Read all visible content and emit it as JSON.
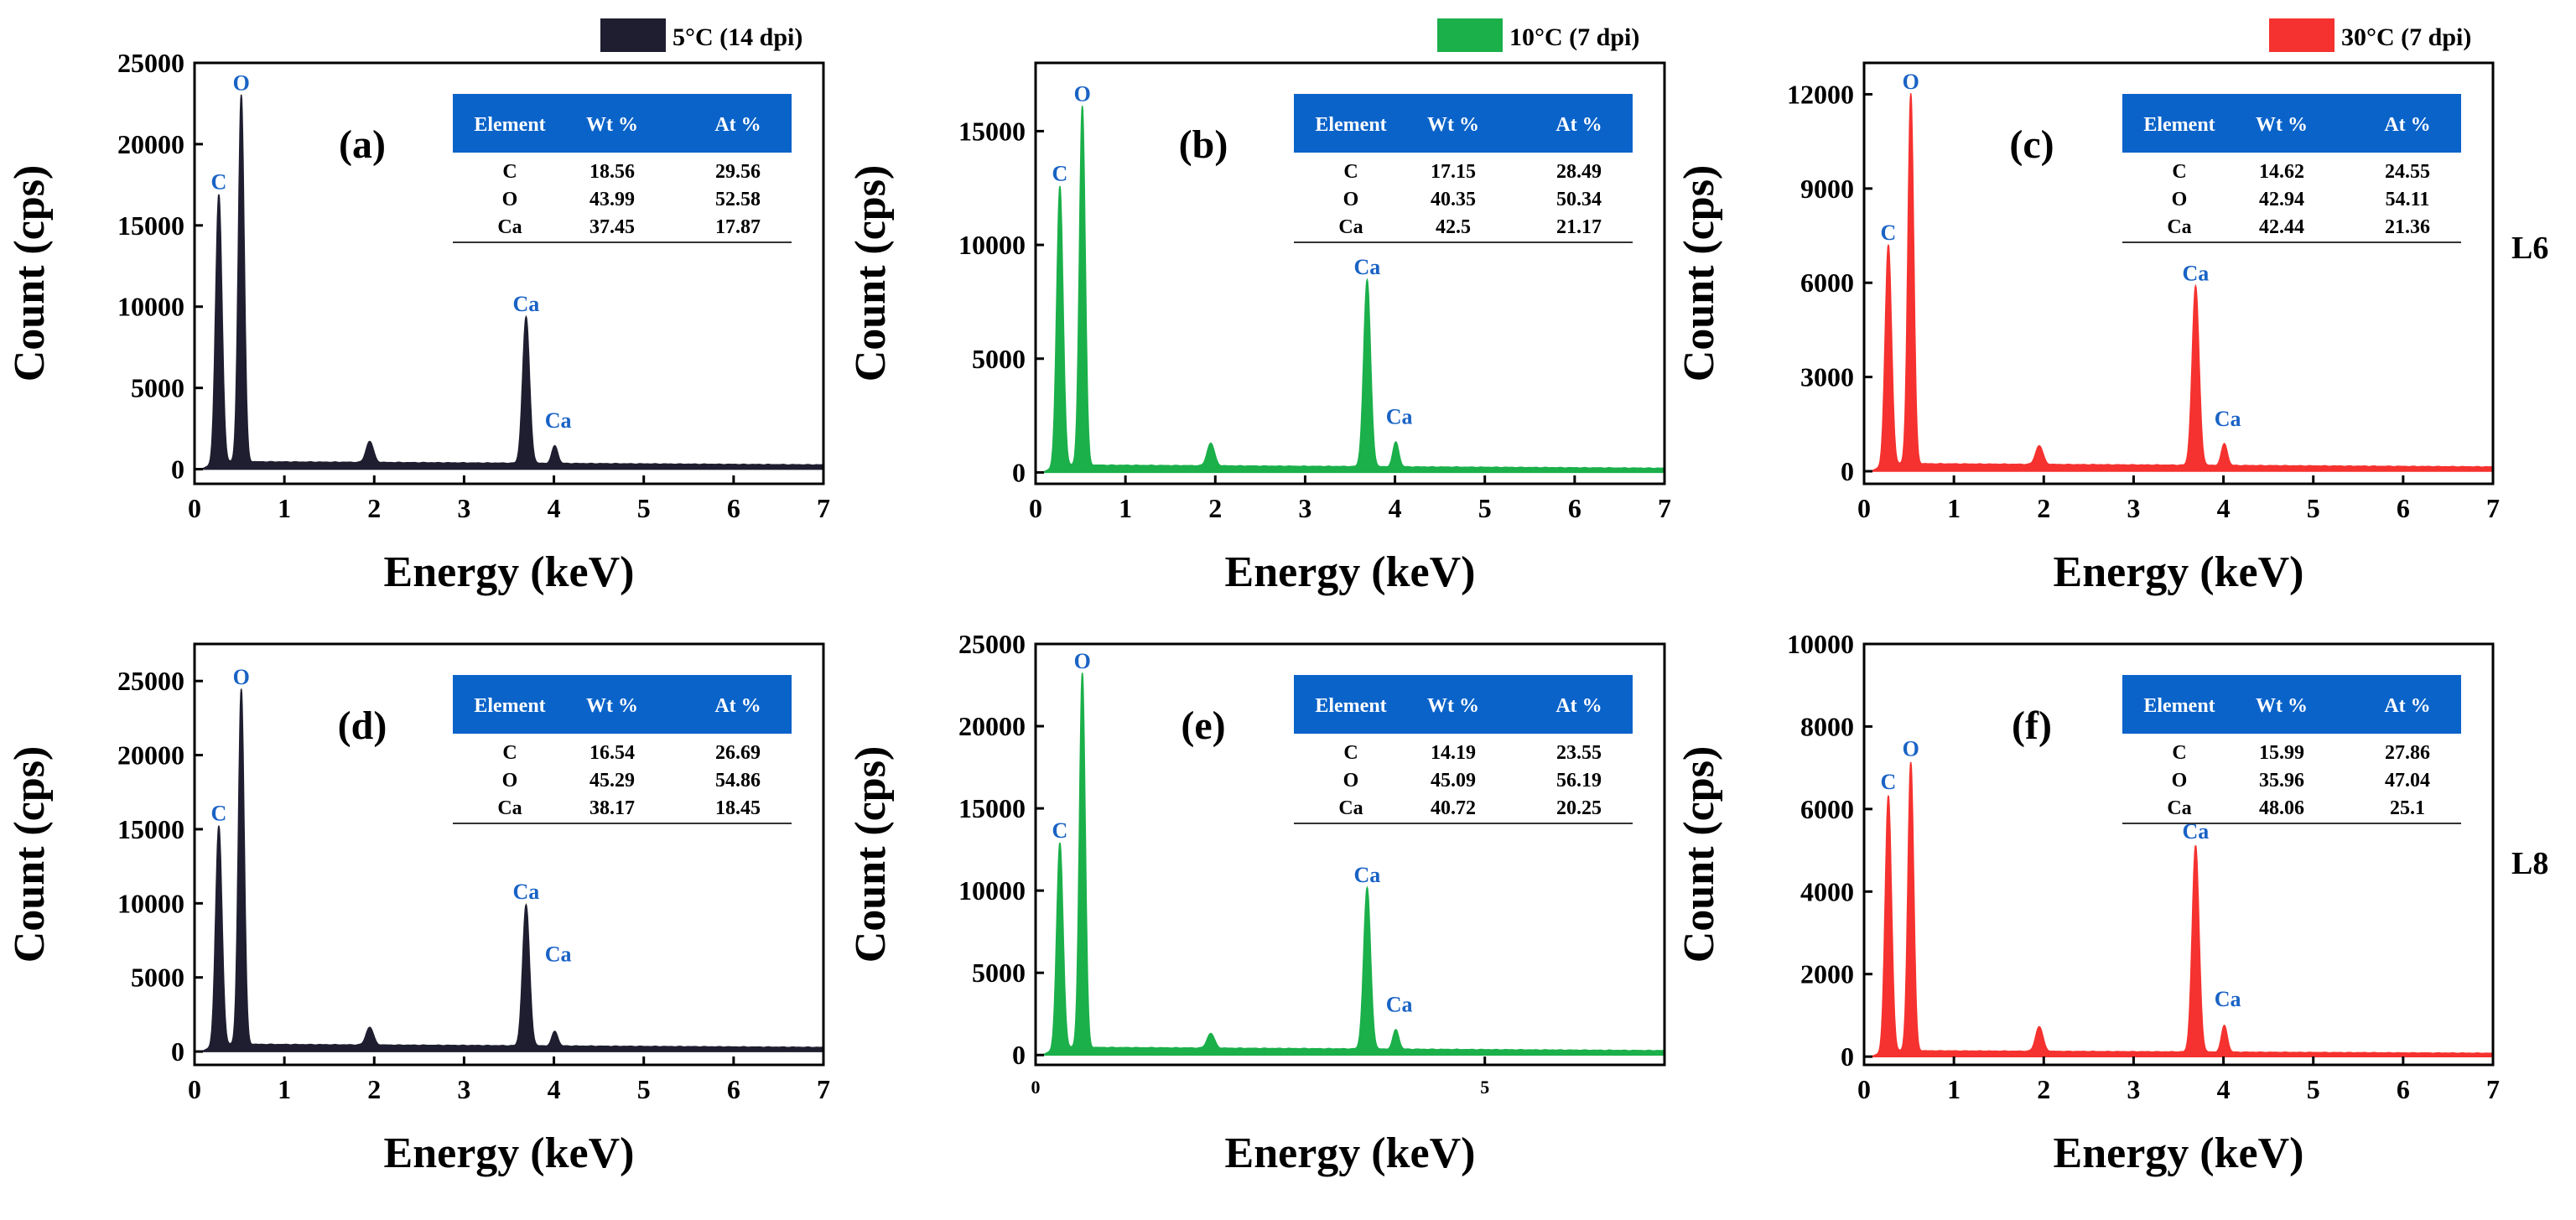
{
  "legend": [
    {
      "label": "5°C (14 dpi)",
      "color": "#1e1e30"
    },
    {
      "label": "10°C (7 dpi)",
      "color": "#1bb04a"
    },
    {
      "label": "30°C (7 dpi)",
      "color": "#f5322f"
    }
  ],
  "row_labels": [
    "L6",
    "L8"
  ],
  "table_header_color": "#0a63c9",
  "peak_label_color": "#1a63c5",
  "chart_data": [
    {
      "type": "line",
      "fill": "area",
      "panel": "(a)",
      "color": "#1e1e30",
      "xlabel": "Energy (keV)",
      "ylabel": "Count (cps)",
      "xlim": [
        0,
        7
      ],
      "ylim": [
        -900,
        25000
      ],
      "xticks": [
        "0",
        "1",
        "2",
        "3",
        "4",
        "5",
        "6",
        "7"
      ],
      "yticks": [
        0,
        5000,
        10000,
        15000,
        20000,
        25000
      ],
      "peaks": [
        {
          "x": 0.27,
          "y": 16500,
          "label": "C"
        },
        {
          "x": 0.52,
          "y": 22600,
          "label": "O"
        },
        {
          "x": 1.95,
          "y": 1300,
          "label": ""
        },
        {
          "x": 3.69,
          "y": 9000,
          "label": "Ca"
        },
        {
          "x": 4.01,
          "y": 1100,
          "label": "Ca"
        }
      ],
      "table": {
        "headers": [
          "Element",
          "Wt %",
          "At %"
        ],
        "rows": [
          [
            "C",
            "18.56",
            "29.56"
          ],
          [
            "O",
            "43.99",
            "52.58"
          ],
          [
            "Ca",
            "37.45",
            "17.87"
          ]
        ]
      }
    },
    {
      "type": "line",
      "fill": "area",
      "panel": "(b)",
      "color": "#1bb04a",
      "xlabel": "Energy (keV)",
      "ylabel": "Count (cps)",
      "xlim": [
        0,
        7
      ],
      "ylim": [
        -500,
        18000
      ],
      "xticks": [
        "0",
        "1",
        "2",
        "3",
        "4",
        "5",
        "6",
        "7"
      ],
      "yticks": [
        0,
        5000,
        10000,
        15000
      ],
      "peaks": [
        {
          "x": 0.27,
          "y": 12300,
          "label": "C"
        },
        {
          "x": 0.52,
          "y": 15800,
          "label": "O"
        },
        {
          "x": 1.95,
          "y": 1000,
          "label": ""
        },
        {
          "x": 3.69,
          "y": 8200,
          "label": "Ca"
        },
        {
          "x": 4.01,
          "y": 1100,
          "label": "Ca"
        }
      ],
      "table": {
        "headers": [
          "Element",
          "Wt %",
          "At %"
        ],
        "rows": [
          [
            "C",
            "17.15",
            "28.49"
          ],
          [
            "O",
            "40.35",
            "50.34"
          ],
          [
            "Ca",
            "42.5",
            "21.17"
          ]
        ]
      }
    },
    {
      "type": "line",
      "fill": "area",
      "panel": "(c)",
      "color": "#f5322f",
      "xlabel": "Energy (keV)",
      "ylabel": "Count (cps)",
      "xlim": [
        0,
        7
      ],
      "ylim": [
        -400,
        13000
      ],
      "xticks": [
        "0",
        "1",
        "2",
        "3",
        "4",
        "5",
        "6",
        "7"
      ],
      "yticks": [
        0,
        3000,
        6000,
        9000,
        12000
      ],
      "peaks": [
        {
          "x": 0.27,
          "y": 7000,
          "label": "C"
        },
        {
          "x": 0.52,
          "y": 11800,
          "label": "O"
        },
        {
          "x": 1.95,
          "y": 600,
          "label": ""
        },
        {
          "x": 3.69,
          "y": 5700,
          "label": "Ca"
        },
        {
          "x": 4.01,
          "y": 700,
          "label": "Ca"
        }
      ],
      "table": {
        "headers": [
          "Element",
          "Wt %",
          "At %"
        ],
        "rows": [
          [
            "C",
            "14.62",
            "24.55"
          ],
          [
            "O",
            "42.94",
            "54.11"
          ],
          [
            "Ca",
            "42.44",
            "21.36"
          ]
        ]
      }
    },
    {
      "type": "line",
      "fill": "area",
      "panel": "(d)",
      "color": "#1e1e30",
      "xlabel": "Energy (keV)",
      "ylabel": "Count (cps)",
      "xlim": [
        0,
        7
      ],
      "ylim": [
        -900,
        27500
      ],
      "xticks": [
        "0",
        "1",
        "2",
        "3",
        "4",
        "5",
        "6",
        "7"
      ],
      "yticks": [
        0,
        5000,
        10000,
        15000,
        20000,
        25000
      ],
      "peaks": [
        {
          "x": 0.27,
          "y": 14800,
          "label": "C"
        },
        {
          "x": 0.52,
          "y": 24000,
          "label": "O"
        },
        {
          "x": 1.95,
          "y": 1200,
          "label": ""
        },
        {
          "x": 3.69,
          "y": 9500,
          "label": "Ca"
        },
        {
          "x": 4.01,
          "y": 1000,
          "label": "Ca"
        }
      ],
      "table": {
        "headers": [
          "Element",
          "Wt %",
          "At %"
        ],
        "rows": [
          [
            "C",
            "16.54",
            "26.69"
          ],
          [
            "O",
            "45.29",
            "54.86"
          ],
          [
            "Ca",
            "38.17",
            "18.45"
          ]
        ]
      }
    },
    {
      "type": "line",
      "fill": "area",
      "panel": "(e)",
      "color": "#1bb04a",
      "xlabel": "Energy (keV)",
      "ylabel": "Count (cps)",
      "xlim": [
        0,
        7
      ],
      "ylim": [
        -600,
        25000
      ],
      "xticks": [
        "0",
        "5"
      ],
      "xtick_values": [
        0,
        5
      ],
      "yticks": [
        0,
        5000,
        10000,
        15000,
        20000,
        25000
      ],
      "peaks": [
        {
          "x": 0.27,
          "y": 12500,
          "label": "C"
        },
        {
          "x": 0.52,
          "y": 22800,
          "label": "O"
        },
        {
          "x": 1.95,
          "y": 900,
          "label": ""
        },
        {
          "x": 3.69,
          "y": 9800,
          "label": "Ca"
        },
        {
          "x": 4.01,
          "y": 1200,
          "label": "Ca"
        }
      ],
      "table": {
        "headers": [
          "Element",
          "Wt %",
          "At %"
        ],
        "rows": [
          [
            "C",
            "14.19",
            "23.55"
          ],
          [
            "O",
            "45.09",
            "56.19"
          ],
          [
            "Ca",
            "40.72",
            "20.25"
          ]
        ]
      }
    },
    {
      "type": "line",
      "fill": "area",
      "panel": "(f)",
      "color": "#f5322f",
      "xlabel": "Energy (keV)",
      "ylabel": "Count (cps)",
      "xlim": [
        0,
        7
      ],
      "ylim": [
        -200,
        10000
      ],
      "xticks": [
        "0",
        "1",
        "2",
        "3",
        "4",
        "5",
        "6",
        "7"
      ],
      "yticks": [
        0,
        2000,
        4000,
        6000,
        8000,
        10000
      ],
      "peaks": [
        {
          "x": 0.27,
          "y": 6200,
          "label": "C"
        },
        {
          "x": 0.52,
          "y": 7000,
          "label": "O"
        },
        {
          "x": 1.95,
          "y": 600,
          "label": ""
        },
        {
          "x": 3.69,
          "y": 5000,
          "label": "Ca"
        },
        {
          "x": 4.01,
          "y": 650,
          "label": "Ca"
        }
      ],
      "table": {
        "headers": [
          "Element",
          "Wt %",
          "At %"
        ],
        "rows": [
          [
            "C",
            "15.99",
            "27.86"
          ],
          [
            "O",
            "35.96",
            "47.04"
          ],
          [
            "Ca",
            "48.06",
            "25.1"
          ]
        ]
      }
    }
  ]
}
